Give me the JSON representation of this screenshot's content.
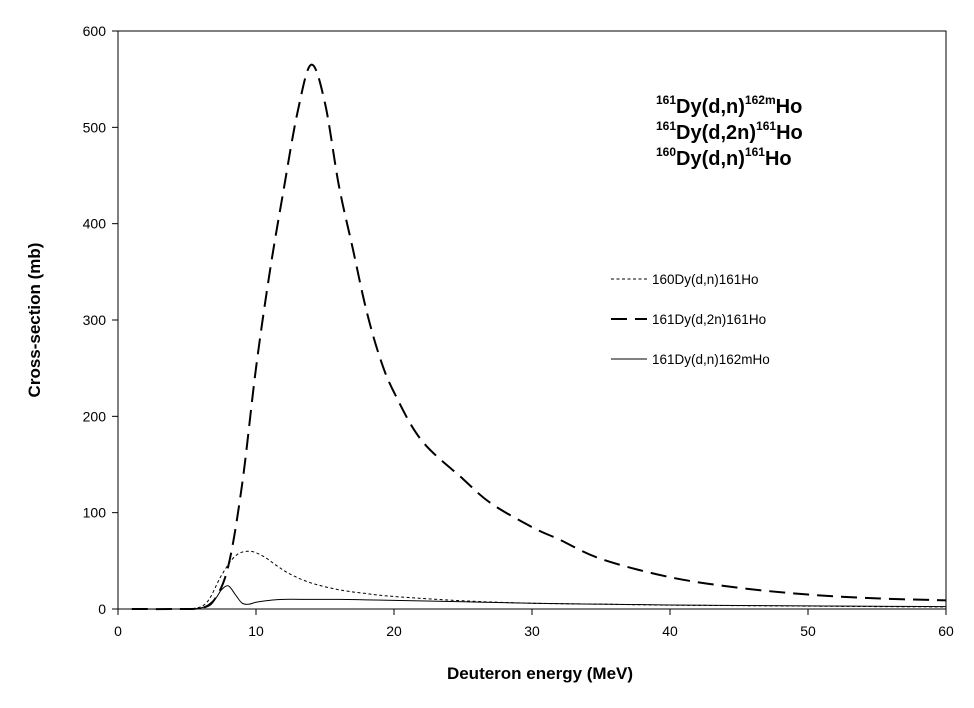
{
  "chart_data": {
    "type": "line",
    "xlabel": "Deuteron energy (MeV)",
    "ylabel": "Cross-section (mb)",
    "xlim": [
      0,
      60
    ],
    "ylim": [
      0,
      600
    ],
    "xticks": [
      0,
      10,
      20,
      30,
      40,
      50,
      60
    ],
    "yticks": [
      0,
      100,
      200,
      300,
      400,
      500,
      600
    ],
    "grid": false,
    "legend_position": "right-middle",
    "annotation_lines": [
      {
        "mass1": "161",
        "prefix": "Dy(d,n)",
        "mass2": "162m",
        "suffix": "Ho"
      },
      {
        "mass1": "161",
        "prefix": "Dy(d,2n)",
        "mass2": "161",
        "suffix": "Ho"
      },
      {
        "mass1": "160",
        "prefix": "Dy(d,n)",
        "mass2": "161",
        "suffix": "Ho"
      }
    ],
    "series": [
      {
        "name": "160Dy(d,n)161Ho",
        "style": "dotted",
        "x": [
          1,
          4,
          5.5,
          6.5,
          7.5,
          8.5,
          9.5,
          10.5,
          11.5,
          12.5,
          14,
          16,
          18,
          20,
          25,
          30,
          35,
          40,
          45,
          50,
          55,
          60
        ],
        "y": [
          0,
          0,
          0.5,
          8,
          35,
          55,
          60,
          55,
          45,
          36,
          27,
          20,
          16,
          13,
          8.5,
          6,
          5,
          4,
          3.5,
          3,
          2.5,
          2.2
        ]
      },
      {
        "name": "161Dy(d,2n)161Ho",
        "style": "dashed",
        "x": [
          1,
          4,
          6,
          7,
          8,
          9,
          10,
          11,
          12,
          13,
          14,
          15,
          16,
          17,
          18,
          19,
          20,
          22,
          25,
          27,
          30,
          32,
          35,
          40,
          45,
          50,
          55,
          60
        ],
        "y": [
          0,
          0,
          1,
          10,
          45,
          130,
          250,
          350,
          435,
          515,
          565,
          525,
          440,
          375,
          310,
          260,
          225,
          175,
          135,
          110,
          85,
          72,
          52,
          33,
          22,
          15,
          11,
          9
        ]
      },
      {
        "name": "161Dy(d,n)162mHo",
        "style": "solid",
        "x": [
          1,
          4,
          6,
          7,
          7.5,
          8,
          8.5,
          9,
          9.5,
          10,
          11,
          12,
          14,
          16,
          18,
          20,
          25,
          30,
          35,
          40,
          45,
          50,
          55,
          60
        ],
        "y": [
          0,
          0,
          1,
          10,
          20,
          24,
          15,
          6,
          5,
          7,
          9,
          10,
          10,
          10,
          9.5,
          9,
          7.5,
          6,
          5,
          4.2,
          3.6,
          3.2,
          2.8,
          2.5
        ]
      }
    ]
  }
}
